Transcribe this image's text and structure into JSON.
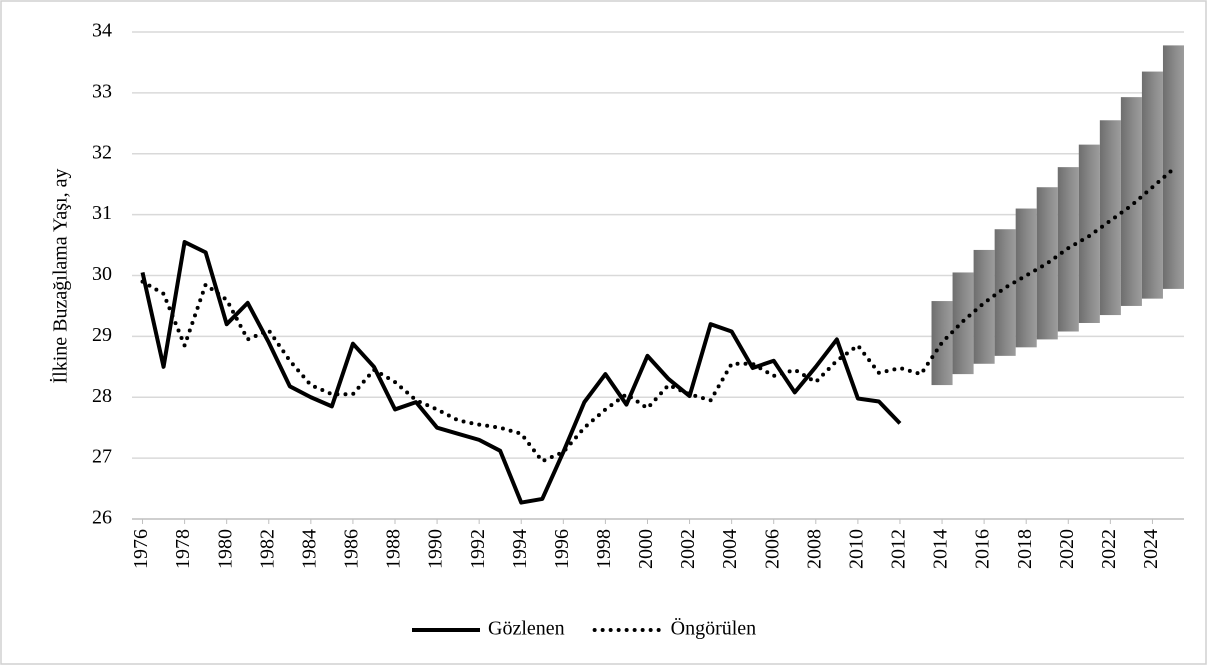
{
  "chart_data": {
    "type": "line",
    "y_label": "İlkine Buzağılama Yaşı, ay",
    "x": [
      1976,
      1977,
      1978,
      1979,
      1980,
      1981,
      1982,
      1983,
      1984,
      1985,
      1986,
      1987,
      1988,
      1989,
      1990,
      1991,
      1992,
      1993,
      1994,
      1995,
      1996,
      1997,
      1998,
      1999,
      2000,
      2001,
      2002,
      2003,
      2004,
      2005,
      2006,
      2007,
      2008,
      2009,
      2010,
      2011,
      2012,
      2013,
      2014,
      2015,
      2016,
      2017,
      2018,
      2019,
      2020,
      2021,
      2022,
      2023,
      2024,
      2025
    ],
    "xlim": [
      1975.5,
      2025.5
    ],
    "xticks": [
      1976,
      1978,
      1980,
      1982,
      1984,
      1986,
      1988,
      1990,
      1992,
      1994,
      1996,
      1998,
      2000,
      2002,
      2004,
      2006,
      2008,
      2010,
      2012,
      2014,
      2016,
      2018,
      2020,
      2022,
      2024
    ],
    "ylim": [
      26,
      34
    ],
    "yticks": [
      26,
      27,
      28,
      29,
      30,
      31,
      32,
      33,
      34
    ],
    "grid": true,
    "legend": "bottom",
    "series": [
      {
        "name": "Gözlenen",
        "color": "#000000",
        "style": "solid",
        "values": [
          30.05,
          28.5,
          30.55,
          30.38,
          29.2,
          29.55,
          28.9,
          28.18,
          28.0,
          27.85,
          28.88,
          28.5,
          27.8,
          27.92,
          27.5,
          27.4,
          27.3,
          27.12,
          26.27,
          26.33,
          27.1,
          27.92,
          28.38,
          27.88,
          28.68,
          28.3,
          28.02,
          29.2,
          29.08,
          28.48,
          28.6,
          28.08,
          28.5,
          28.95,
          27.98,
          27.93,
          27.57,
          null,
          null,
          null,
          null,
          null,
          null,
          null,
          null,
          null,
          null,
          null,
          null,
          null
        ]
      },
      {
        "name": "Öngörülen",
        "color": "#000000",
        "style": "dotted",
        "values": [
          29.9,
          29.7,
          28.85,
          29.85,
          29.6,
          28.95,
          29.1,
          28.6,
          28.2,
          28.05,
          28.05,
          28.45,
          28.25,
          27.95,
          27.8,
          27.62,
          27.55,
          27.5,
          27.4,
          26.95,
          27.1,
          27.5,
          27.8,
          28.05,
          27.82,
          28.2,
          28.05,
          27.95,
          28.55,
          28.55,
          28.35,
          28.45,
          28.25,
          28.6,
          28.85,
          28.4,
          28.48,
          28.38,
          28.9,
          29.25,
          29.55,
          29.8,
          30.0,
          30.2,
          30.45,
          30.65,
          30.9,
          31.15,
          31.45,
          31.75
        ]
      }
    ],
    "band": {
      "color": "#8c8c8c",
      "x": [
        2014,
        2015,
        2016,
        2017,
        2018,
        2019,
        2020,
        2021,
        2022,
        2023,
        2024,
        2025
      ],
      "lower": [
        28.2,
        28.38,
        28.55,
        28.68,
        28.82,
        28.95,
        29.08,
        29.22,
        29.35,
        29.5,
        29.62,
        29.78
      ],
      "upper": [
        29.58,
        30.05,
        30.42,
        30.76,
        31.1,
        31.45,
        31.78,
        32.15,
        32.55,
        32.93,
        33.35,
        33.78
      ]
    }
  }
}
